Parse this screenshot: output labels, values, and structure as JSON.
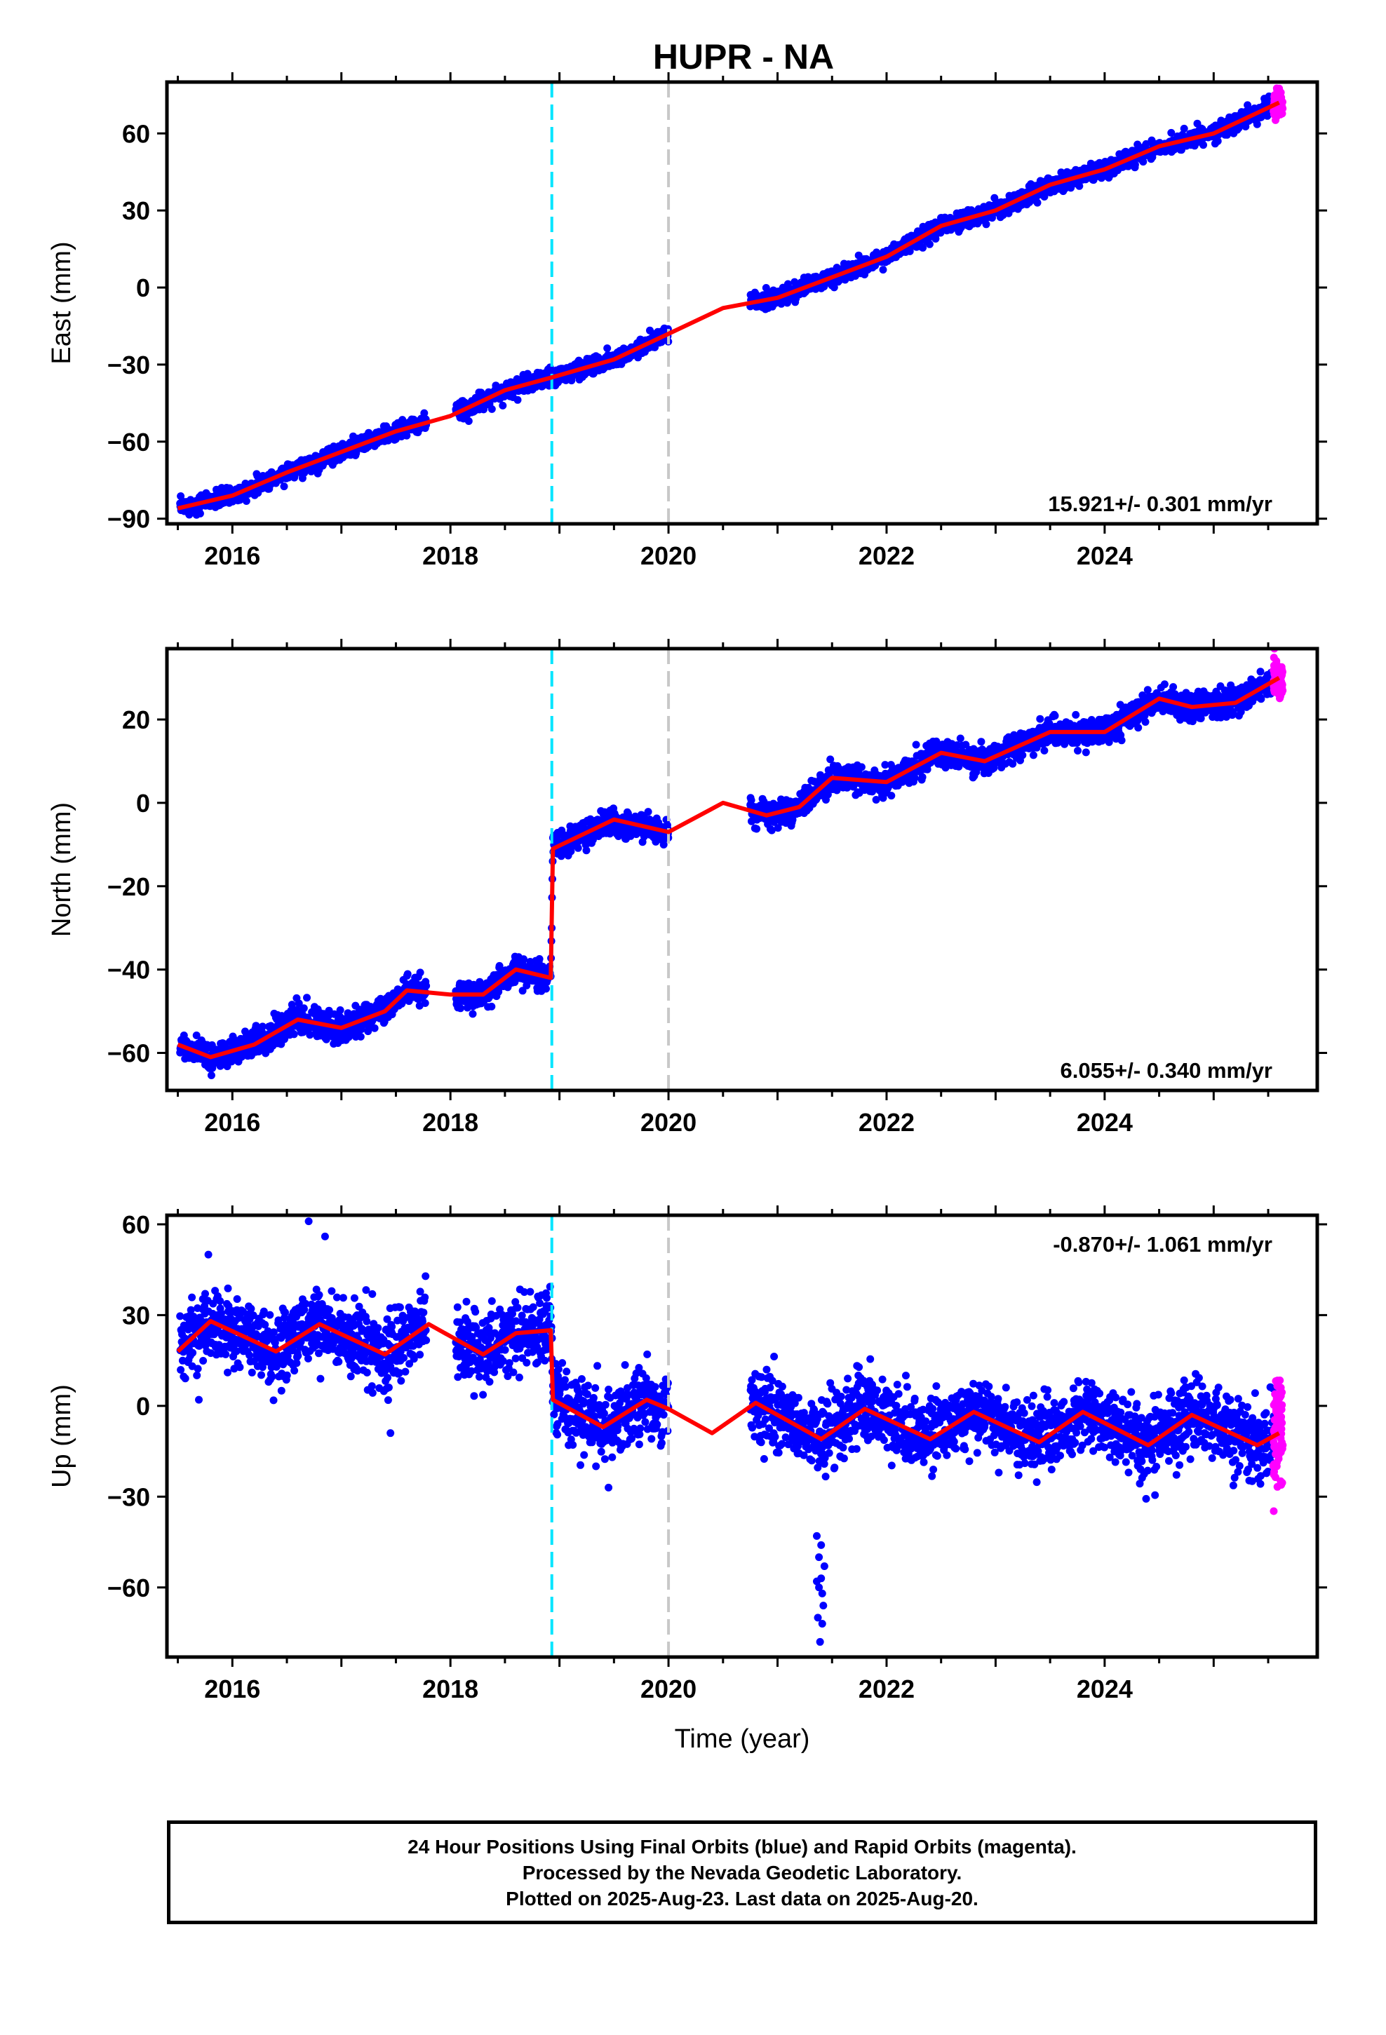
{
  "title": "HUPR - NA",
  "xlabel": "Time (year)",
  "footer": {
    "line1": "24 Hour Positions Using Final Orbits (blue) and Rapid Orbits (magenta).",
    "line2": "Processed by the Nevada Geodetic Laboratory.",
    "line3": "Plotted on 2025-Aug-23. Last data on 2025-Aug-20."
  },
  "colors": {
    "final_orbits": "#0000ff",
    "rapid_orbits": "#ff00ff",
    "model": "#ff0000",
    "event_1": "#00e5ff",
    "event_2": "#c8c8c8"
  },
  "chart_data": [
    {
      "type": "scatter",
      "component": "East",
      "ylabel": "East (mm)",
      "xlim": [
        2015.4,
        2025.95
      ],
      "ylim": [
        -92,
        80
      ],
      "xticks": [
        2016,
        2018,
        2020,
        2022,
        2024
      ],
      "yticks": [
        -90,
        -60,
        -30,
        0,
        30,
        60
      ],
      "velocity_label": "15.921+/- 0.301 mm/yr",
      "velocity_position": "bottom-right",
      "events": [
        2018.93,
        2020.0
      ],
      "trend": {
        "x0": 2015.5,
        "y0": -86,
        "slope": 15.921
      },
      "seasonal": {
        "amp": 1.5,
        "phase": 0.3
      },
      "scatter_sd": 1.6,
      "offsets": [],
      "model_points": [
        [
          2015.5,
          -86
        ],
        [
          2016.0,
          -81
        ],
        [
          2016.5,
          -72
        ],
        [
          2017.0,
          -64
        ],
        [
          2017.5,
          -56
        ],
        [
          2018.0,
          -50
        ],
        [
          2018.5,
          -40
        ],
        [
          2018.93,
          -35
        ],
        [
          2019.5,
          -28
        ],
        [
          2020.0,
          -18
        ],
        [
          2020.5,
          -8
        ],
        [
          2021.0,
          -4
        ],
        [
          2021.5,
          4
        ],
        [
          2022.0,
          12
        ],
        [
          2022.5,
          24
        ],
        [
          2023.0,
          30
        ],
        [
          2023.5,
          40
        ],
        [
          2024.0,
          46
        ],
        [
          2024.5,
          55
        ],
        [
          2025.0,
          60
        ],
        [
          2025.6,
          72
        ]
      ],
      "final_segments": [
        [
          2015.52,
          2017.78
        ],
        [
          2018.05,
          2020.0
        ],
        [
          2020.75,
          2025.55
        ]
      ],
      "rapid_range": [
        2025.55,
        2025.63
      ],
      "outliers": []
    },
    {
      "type": "scatter",
      "component": "North",
      "ylabel": "North (mm)",
      "xlim": [
        2015.4,
        2025.95
      ],
      "ylim": [
        -69,
        37
      ],
      "xticks": [
        2016,
        2018,
        2020,
        2022,
        2024
      ],
      "yticks": [
        -60,
        -40,
        -20,
        0,
        20
      ],
      "velocity_label": "6.055+/- 0.340 mm/yr",
      "velocity_position": "bottom-right",
      "events": [
        2018.93,
        2020.0
      ],
      "trend": {
        "x0": 2015.5,
        "y0": -60,
        "slope": 6.055
      },
      "seasonal": {
        "amp": 2.5,
        "phase": 0.2
      },
      "scatter_sd": 1.6,
      "offsets": [
        {
          "t": 2018.93,
          "dy": 30
        }
      ],
      "model_points": [
        [
          2015.5,
          -58
        ],
        [
          2015.8,
          -61
        ],
        [
          2016.2,
          -58
        ],
        [
          2016.6,
          -52
        ],
        [
          2017.0,
          -54
        ],
        [
          2017.4,
          -50
        ],
        [
          2017.6,
          -45
        ],
        [
          2018.0,
          -46
        ],
        [
          2018.3,
          -46
        ],
        [
          2018.6,
          -40
        ],
        [
          2018.92,
          -42
        ],
        [
          2018.94,
          -11
        ],
        [
          2019.5,
          -4
        ],
        [
          2020.0,
          -7
        ],
        [
          2020.5,
          0
        ],
        [
          2020.9,
          -3
        ],
        [
          2021.2,
          -1
        ],
        [
          2021.5,
          6
        ],
        [
          2022.0,
          5
        ],
        [
          2022.5,
          12
        ],
        [
          2022.9,
          10
        ],
        [
          2023.5,
          17
        ],
        [
          2024.0,
          17
        ],
        [
          2024.5,
          25
        ],
        [
          2024.8,
          23
        ],
        [
          2025.2,
          24
        ],
        [
          2025.6,
          30
        ]
      ],
      "final_segments": [
        [
          2015.52,
          2017.78
        ],
        [
          2018.05,
          2020.0
        ],
        [
          2020.75,
          2025.55
        ]
      ],
      "rapid_range": [
        2025.55,
        2025.63
      ],
      "outliers": []
    },
    {
      "type": "scatter",
      "component": "Up",
      "ylabel": "Up (mm)",
      "xlim": [
        2015.4,
        2025.95
      ],
      "ylim": [
        -83,
        63
      ],
      "xticks": [
        2016,
        2018,
        2020,
        2022,
        2024
      ],
      "yticks": [
        -60,
        -30,
        0,
        30,
        60
      ],
      "velocity_label": "-0.870+/- 1.061 mm/yr",
      "velocity_position": "top-right",
      "events": [
        2018.93,
        2020.0
      ],
      "trend": {
        "x0": 2015.5,
        "y0": 22,
        "slope": -0.87
      },
      "seasonal": {
        "amp": 5,
        "phase": 0.6
      },
      "scatter_sd": 6,
      "offsets": [
        {
          "t": 2018.93,
          "dy": -22
        }
      ],
      "model_points": [
        [
          2015.5,
          18
        ],
        [
          2015.8,
          28
        ],
        [
          2016.4,
          18
        ],
        [
          2016.8,
          27
        ],
        [
          2017.4,
          17
        ],
        [
          2017.8,
          27
        ],
        [
          2018.3,
          17
        ],
        [
          2018.6,
          24
        ],
        [
          2018.92,
          25
        ],
        [
          2018.94,
          2
        ],
        [
          2019.4,
          -7
        ],
        [
          2019.8,
          2
        ],
        [
          2020.0,
          -1
        ],
        [
          2020.4,
          -9
        ],
        [
          2020.8,
          1
        ],
        [
          2021.4,
          -11
        ],
        [
          2021.8,
          -1
        ],
        [
          2022.4,
          -11
        ],
        [
          2022.8,
          -2
        ],
        [
          2023.4,
          -12
        ],
        [
          2023.8,
          -2
        ],
        [
          2024.4,
          -13
        ],
        [
          2024.8,
          -3
        ],
        [
          2025.4,
          -13
        ],
        [
          2025.6,
          -9
        ]
      ],
      "final_segments": [
        [
          2015.52,
          2017.78
        ],
        [
          2018.05,
          2020.0
        ],
        [
          2020.75,
          2025.55
        ]
      ],
      "rapid_range": [
        2025.55,
        2025.63
      ],
      "outliers": [
        [
          2021.36,
          -43
        ],
        [
          2021.38,
          -50
        ],
        [
          2021.4,
          -57
        ],
        [
          2021.41,
          -62
        ],
        [
          2021.42,
          -66
        ],
        [
          2021.37,
          -70
        ],
        [
          2021.39,
          -78
        ],
        [
          2021.43,
          -53
        ],
        [
          2021.38,
          -60
        ],
        [
          2021.4,
          -46
        ],
        [
          2021.36,
          -58
        ],
        [
          2021.41,
          -72
        ],
        [
          2016.7,
          61
        ],
        [
          2016.85,
          56
        ],
        [
          2015.78,
          50
        ],
        [
          2017.45,
          -9
        ],
        [
          2019.45,
          -27
        ],
        [
          2020.9,
          12
        ]
      ]
    }
  ]
}
